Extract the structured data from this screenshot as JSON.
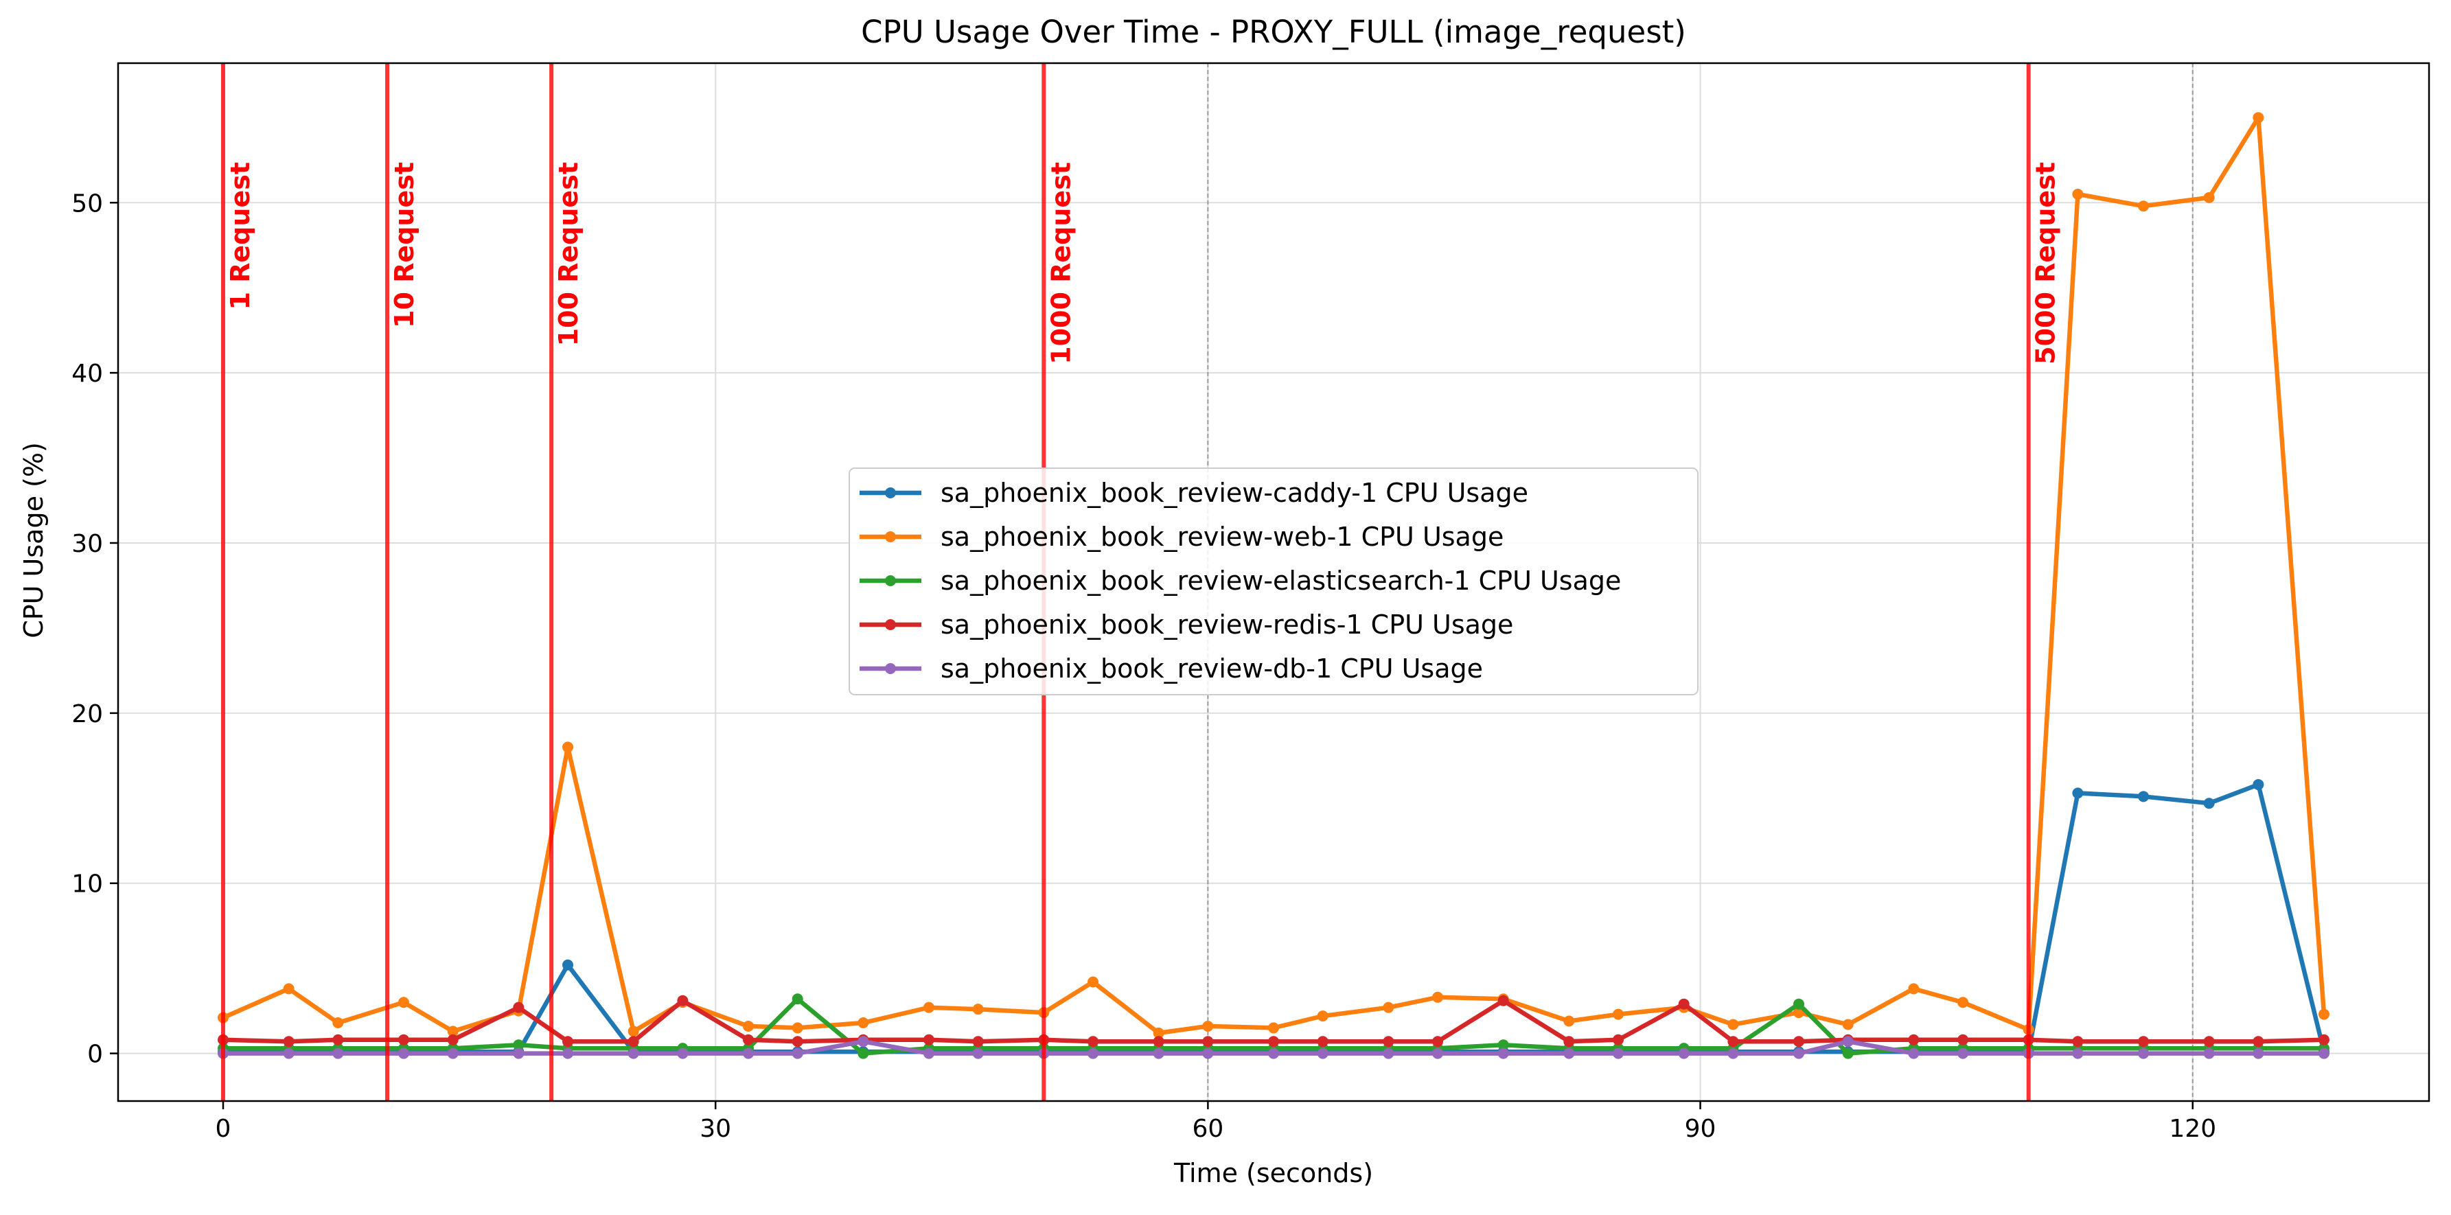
{
  "chart_data": {
    "type": "line",
    "title": "CPU Usage Over Time - PROXY_FULL (image_request)",
    "xlabel": "Time (seconds)",
    "ylabel": "CPU Usage (%)",
    "xlim": [
      -6.4,
      134.4
    ],
    "ylim": [
      -2.8,
      58.2
    ],
    "xticks": [
      0,
      30,
      60,
      90,
      120
    ],
    "yticks": [
      0,
      10,
      20,
      30,
      40,
      50
    ],
    "grid": true,
    "legend_position": "center",
    "dashed_vlines": [
      60,
      120
    ],
    "phase_markers": [
      {
        "x": 0,
        "label": "1 Request"
      },
      {
        "x": 10,
        "label": "10 Request"
      },
      {
        "x": 20,
        "label": "100 Request"
      },
      {
        "x": 50,
        "label": "1000 Request"
      },
      {
        "x": 110,
        "label": "5000 Request"
      }
    ],
    "series": [
      {
        "name": "sa_phoenix_book_review-caddy-1 CPU Usage",
        "color": "#1f77b4",
        "points": [
          [
            0,
            0.1
          ],
          [
            4,
            0.1
          ],
          [
            7,
            0.1
          ],
          [
            11,
            0.1
          ],
          [
            14,
            0.1
          ],
          [
            18,
            0.1
          ],
          [
            21,
            5.2
          ],
          [
            25,
            0.1
          ],
          [
            28,
            0.1
          ],
          [
            32,
            0.1
          ],
          [
            35,
            0.1
          ],
          [
            39,
            0.1
          ],
          [
            43,
            0.1
          ],
          [
            46,
            0.1
          ],
          [
            50,
            0.1
          ],
          [
            53,
            0.1
          ],
          [
            57,
            0.1
          ],
          [
            60,
            0.1
          ],
          [
            64,
            0.1
          ],
          [
            67,
            0.1
          ],
          [
            71,
            0.1
          ],
          [
            74,
            0.1
          ],
          [
            78,
            0.1
          ],
          [
            82,
            0.1
          ],
          [
            85,
            0.1
          ],
          [
            89,
            0.1
          ],
          [
            92,
            0.1
          ],
          [
            96,
            0.1
          ],
          [
            99,
            0.1
          ],
          [
            103,
            0.1
          ],
          [
            106,
            0.1
          ],
          [
            110,
            0.1
          ],
          [
            113,
            15.3
          ],
          [
            117,
            15.1
          ],
          [
            121,
            14.7
          ],
          [
            124,
            15.8
          ],
          [
            128,
            0.1
          ]
        ]
      },
      {
        "name": "sa_phoenix_book_review-web-1 CPU Usage",
        "color": "#ff7f0e",
        "points": [
          [
            0,
            2.1
          ],
          [
            4,
            3.8
          ],
          [
            7,
            1.8
          ],
          [
            11,
            3.0
          ],
          [
            14,
            1.3
          ],
          [
            18,
            2.5
          ],
          [
            21,
            18.0
          ],
          [
            25,
            1.3
          ],
          [
            28,
            3.0
          ],
          [
            32,
            1.6
          ],
          [
            35,
            1.5
          ],
          [
            39,
            1.8
          ],
          [
            43,
            2.7
          ],
          [
            46,
            2.6
          ],
          [
            50,
            2.4
          ],
          [
            53,
            4.2
          ],
          [
            57,
            1.2
          ],
          [
            60,
            1.6
          ],
          [
            64,
            1.5
          ],
          [
            67,
            2.2
          ],
          [
            71,
            2.7
          ],
          [
            74,
            3.3
          ],
          [
            78,
            3.2
          ],
          [
            82,
            1.9
          ],
          [
            85,
            2.3
          ],
          [
            89,
            2.7
          ],
          [
            92,
            1.7
          ],
          [
            96,
            2.4
          ],
          [
            99,
            1.7
          ],
          [
            103,
            3.8
          ],
          [
            106,
            3.0
          ],
          [
            110,
            1.4
          ],
          [
            113,
            50.5
          ],
          [
            117,
            49.8
          ],
          [
            121,
            50.3
          ],
          [
            124,
            55.0
          ],
          [
            128,
            2.3
          ]
        ]
      },
      {
        "name": "sa_phoenix_book_review-elasticsearch-1 CPU Usage",
        "color": "#2ca02c",
        "points": [
          [
            0,
            0.3
          ],
          [
            4,
            0.3
          ],
          [
            7,
            0.3
          ],
          [
            11,
            0.3
          ],
          [
            14,
            0.3
          ],
          [
            18,
            0.5
          ],
          [
            21,
            0.3
          ],
          [
            25,
            0.3
          ],
          [
            28,
            0.3
          ],
          [
            32,
            0.3
          ],
          [
            35,
            3.2
          ],
          [
            39,
            0.0
          ],
          [
            43,
            0.3
          ],
          [
            46,
            0.3
          ],
          [
            50,
            0.3
          ],
          [
            53,
            0.3
          ],
          [
            57,
            0.3
          ],
          [
            60,
            0.3
          ],
          [
            64,
            0.3
          ],
          [
            67,
            0.3
          ],
          [
            71,
            0.3
          ],
          [
            74,
            0.3
          ],
          [
            78,
            0.5
          ],
          [
            82,
            0.3
          ],
          [
            85,
            0.3
          ],
          [
            89,
            0.3
          ],
          [
            92,
            0.3
          ],
          [
            96,
            2.9
          ],
          [
            99,
            0.0
          ],
          [
            103,
            0.3
          ],
          [
            106,
            0.3
          ],
          [
            110,
            0.3
          ],
          [
            113,
            0.3
          ],
          [
            117,
            0.3
          ],
          [
            121,
            0.3
          ],
          [
            124,
            0.3
          ],
          [
            128,
            0.3
          ]
        ]
      },
      {
        "name": "sa_phoenix_book_review-redis-1 CPU Usage",
        "color": "#d62728",
        "points": [
          [
            0,
            0.8
          ],
          [
            4,
            0.7
          ],
          [
            7,
            0.8
          ],
          [
            11,
            0.8
          ],
          [
            14,
            0.8
          ],
          [
            18,
            2.7
          ],
          [
            21,
            0.7
          ],
          [
            25,
            0.7
          ],
          [
            28,
            3.1
          ],
          [
            32,
            0.8
          ],
          [
            35,
            0.7
          ],
          [
            39,
            0.8
          ],
          [
            43,
            0.8
          ],
          [
            46,
            0.7
          ],
          [
            50,
            0.8
          ],
          [
            53,
            0.7
          ],
          [
            57,
            0.7
          ],
          [
            60,
            0.7
          ],
          [
            64,
            0.7
          ],
          [
            67,
            0.7
          ],
          [
            71,
            0.7
          ],
          [
            74,
            0.7
          ],
          [
            78,
            3.1
          ],
          [
            82,
            0.7
          ],
          [
            85,
            0.8
          ],
          [
            89,
            2.9
          ],
          [
            92,
            0.7
          ],
          [
            96,
            0.7
          ],
          [
            99,
            0.8
          ],
          [
            103,
            0.8
          ],
          [
            106,
            0.8
          ],
          [
            110,
            0.8
          ],
          [
            113,
            0.7
          ],
          [
            117,
            0.7
          ],
          [
            121,
            0.7
          ],
          [
            124,
            0.7
          ],
          [
            128,
            0.8
          ]
        ]
      },
      {
        "name": "sa_phoenix_book_review-db-1 CPU Usage",
        "color": "#9467bd",
        "points": [
          [
            0,
            0.0
          ],
          [
            4,
            0.0
          ],
          [
            7,
            0.0
          ],
          [
            11,
            0.0
          ],
          [
            14,
            0.0
          ],
          [
            18,
            0.0
          ],
          [
            21,
            0.0
          ],
          [
            25,
            0.0
          ],
          [
            28,
            0.0
          ],
          [
            32,
            0.0
          ],
          [
            35,
            0.0
          ],
          [
            39,
            0.7
          ],
          [
            43,
            0.0
          ],
          [
            46,
            0.0
          ],
          [
            50,
            0.0
          ],
          [
            53,
            0.0
          ],
          [
            57,
            0.0
          ],
          [
            60,
            0.0
          ],
          [
            64,
            0.0
          ],
          [
            67,
            0.0
          ],
          [
            71,
            0.0
          ],
          [
            74,
            0.0
          ],
          [
            78,
            0.0
          ],
          [
            82,
            0.0
          ],
          [
            85,
            0.0
          ],
          [
            89,
            0.0
          ],
          [
            92,
            0.0
          ],
          [
            96,
            0.0
          ],
          [
            99,
            0.7
          ],
          [
            103,
            0.0
          ],
          [
            106,
            0.0
          ],
          [
            110,
            0.0
          ],
          [
            113,
            0.0
          ],
          [
            117,
            0.0
          ],
          [
            121,
            0.0
          ],
          [
            124,
            0.0
          ],
          [
            128,
            0.0
          ]
        ]
      }
    ]
  }
}
